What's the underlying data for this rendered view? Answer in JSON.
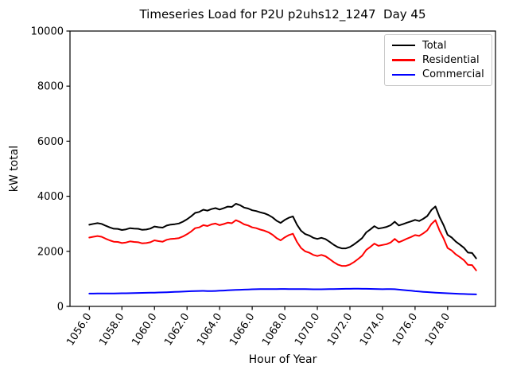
{
  "figure": {
    "title": "Timeseries Load for P2U p2uhs12_1247  Day 45"
  },
  "chart_data": {
    "type": "line",
    "title": "Timeseries Load for P2U p2uhs12_1247  Day 45",
    "xlabel": "Hour of Year",
    "ylabel": "kW total",
    "xlim": [
      1054.8125,
      1080.9375
    ],
    "ylim": [
      0,
      10000
    ],
    "grid": false,
    "legend_position": "upper right",
    "xticks": {
      "values": [
        1056,
        1058,
        1060,
        1062,
        1064,
        1066,
        1068,
        1070,
        1072,
        1074,
        1076,
        1078
      ],
      "labels": [
        "1056.0",
        "1058.0",
        "1060.0",
        "1062.0",
        "1064.0",
        "1066.0",
        "1068.0",
        "1070.0",
        "1072.0",
        "1074.0",
        "1076.0",
        "1078.0"
      ],
      "rotation_deg": 57
    },
    "yticks": {
      "values": [
        0,
        2000,
        4000,
        6000,
        8000,
        10000
      ],
      "labels": [
        "0",
        "2000",
        "4000",
        "6000",
        "8000",
        "10000"
      ]
    },
    "x": [
      1056.0,
      1056.25,
      1056.5,
      1056.75,
      1057.0,
      1057.25,
      1057.5,
      1057.75,
      1058.0,
      1058.25,
      1058.5,
      1058.75,
      1059.0,
      1059.25,
      1059.5,
      1059.75,
      1060.0,
      1060.25,
      1060.5,
      1060.75,
      1061.0,
      1061.25,
      1061.5,
      1061.75,
      1062.0,
      1062.25,
      1062.5,
      1062.75,
      1063.0,
      1063.25,
      1063.5,
      1063.75,
      1064.0,
      1064.25,
      1064.5,
      1064.75,
      1065.0,
      1065.25,
      1065.5,
      1065.75,
      1066.0,
      1066.25,
      1066.5,
      1066.75,
      1067.0,
      1067.25,
      1067.5,
      1067.75,
      1068.0,
      1068.25,
      1068.5,
      1068.75,
      1069.0,
      1069.25,
      1069.5,
      1069.75,
      1070.0,
      1070.25,
      1070.5,
      1070.75,
      1071.0,
      1071.25,
      1071.5,
      1071.75,
      1072.0,
      1072.25,
      1072.5,
      1072.75,
      1073.0,
      1073.25,
      1073.5,
      1073.75,
      1074.0,
      1074.25,
      1074.5,
      1074.75,
      1075.0,
      1075.25,
      1075.5,
      1075.75,
      1076.0,
      1076.25,
      1076.5,
      1076.75,
      1077.0,
      1077.25,
      1077.5,
      1077.75,
      1078.0,
      1078.25,
      1078.5,
      1078.75,
      1079.0,
      1079.25,
      1079.5,
      1079.75
    ],
    "series": [
      {
        "name": "Total",
        "color": "#000000",
        "values": [
          2965,
          2996,
          3022,
          2998,
          2930,
          2871,
          2822,
          2814,
          2776,
          2798,
          2841,
          2824,
          2817,
          2780,
          2793,
          2827,
          2901,
          2875,
          2860,
          2935,
          2970,
          2986,
          3012,
          3078,
          3165,
          3271,
          3396,
          3430,
          3513,
          3478,
          3536,
          3570,
          3518,
          3566,
          3624,
          3612,
          3729,
          3675,
          3591,
          3556,
          3490,
          3463,
          3416,
          3378,
          3319,
          3230,
          3111,
          3032,
          3142,
          3221,
          3270,
          2969,
          2748,
          2626,
          2574,
          2492,
          2451,
          2492,
          2444,
          2347,
          2240,
          2153,
          2106,
          2108,
          2160,
          2251,
          2361,
          2480,
          2688,
          2795,
          2912,
          2828,
          2854,
          2886,
          2948,
          3075,
          2940,
          2985,
          3040,
          3088,
          3142,
          3100,
          3180,
          3281,
          3500,
          3630,
          3252,
          2955,
          2597,
          2500,
          2353,
          2246,
          2130,
          1955,
          1940,
          1745
        ]
      },
      {
        "name": "Residential",
        "color": "#ff0000",
        "values": [
          2500,
          2530,
          2555,
          2530,
          2460,
          2400,
          2350,
          2340,
          2300,
          2320,
          2360,
          2340,
          2330,
          2290,
          2300,
          2330,
          2400,
          2370,
          2350,
          2420,
          2450,
          2460,
          2480,
          2540,
          2620,
          2720,
          2840,
          2870,
          2950,
          2920,
          2980,
          3010,
          2950,
          2990,
          3040,
          3020,
          3130,
          3070,
          2980,
          2940,
          2870,
          2840,
          2790,
          2750,
          2690,
          2600,
          2480,
          2400,
          2510,
          2590,
          2640,
          2340,
          2120,
          2000,
          1950,
          1870,
          1830,
          1870,
          1820,
          1720,
          1610,
          1520,
          1470,
          1470,
          1520,
          1610,
          1720,
          1840,
          2050,
          2160,
          2280,
          2200,
          2230,
          2260,
          2320,
          2450,
          2330,
          2390,
          2460,
          2520,
          2590,
          2560,
          2650,
          2760,
          2990,
          3130,
          2760,
          2470,
          2120,
          2030,
          1890,
          1790,
          1680,
          1510,
          1500,
          1310
        ]
      },
      {
        "name": "Commercial",
        "color": "#0000ff",
        "values": [
          465,
          466,
          467,
          468,
          470,
          471,
          472,
          474,
          476,
          478,
          481,
          484,
          487,
          490,
          493,
          497,
          501,
          505,
          510,
          515,
          520,
          526,
          532,
          538,
          545,
          551,
          556,
          560,
          563,
          558,
          556,
          560,
          568,
          576,
          584,
          592,
          599,
          605,
          611,
          616,
          620,
          623,
          626,
          628,
          629,
          630,
          631,
          632,
          632,
          631,
          630,
          629,
          628,
          626,
          624,
          622,
          621,
          622,
          624,
          627,
          630,
          633,
          636,
          638,
          640,
          641,
          641,
          640,
          638,
          635,
          632,
          628,
          624,
          626,
          628,
          625,
          610,
          595,
          580,
          568,
          552,
          540,
          530,
          521,
          510,
          500,
          492,
          485,
          477,
          470,
          463,
          456,
          450,
          445,
          440,
          435
        ]
      }
    ]
  }
}
